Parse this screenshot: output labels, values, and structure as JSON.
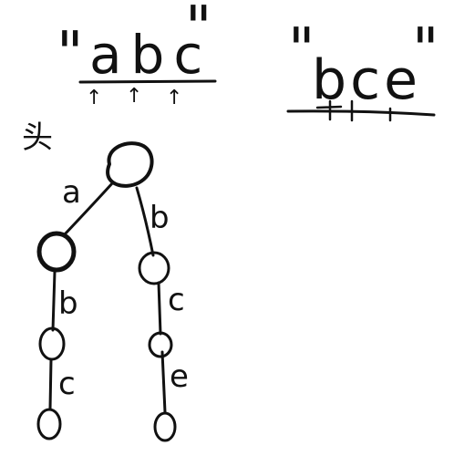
{
  "strings": {
    "first": {
      "quote_open": "\"",
      "text": "abc",
      "quote_close": "\""
    },
    "second": {
      "quote_open": "\"",
      "text": "bce",
      "quote_close": "\""
    }
  },
  "pointer_glyph": "↑",
  "head_label": "头",
  "trie": {
    "left_branch": [
      "a",
      "b",
      "c"
    ],
    "right_branch": [
      "b",
      "c",
      "e"
    ]
  },
  "colors": {
    "ink": "#111111",
    "background": "#ffffff"
  }
}
